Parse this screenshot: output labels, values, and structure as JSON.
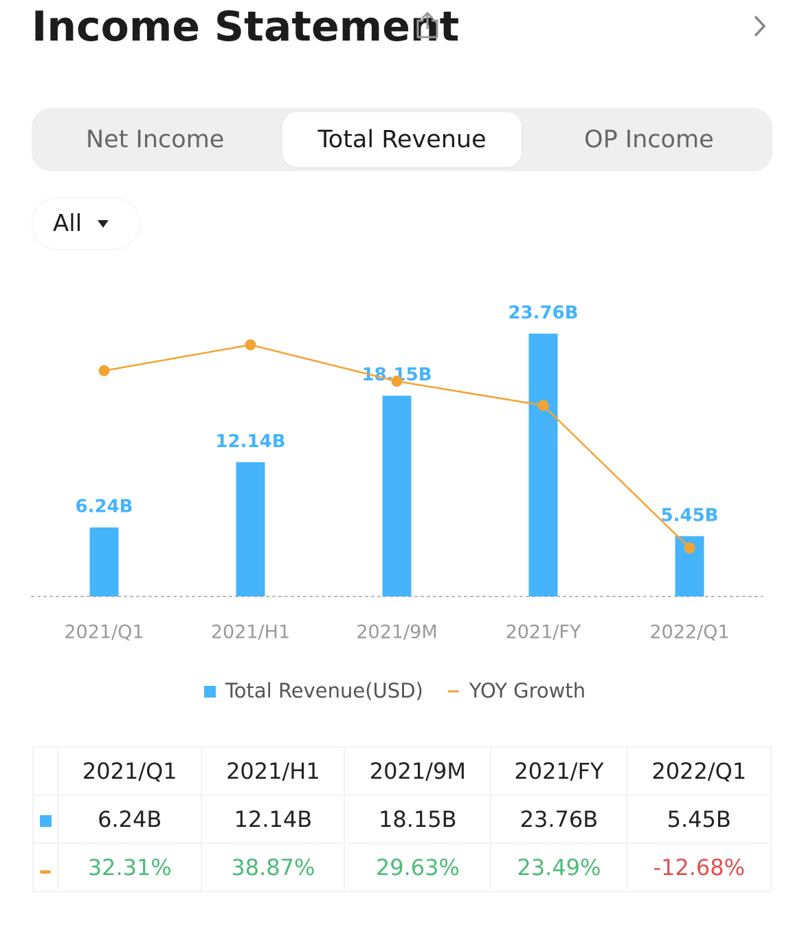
{
  "header": {
    "title": "Income Statement"
  },
  "tabs": {
    "items": [
      "Net Income",
      "Total Revenue",
      "OP Income"
    ],
    "active": 1
  },
  "filter": {
    "label": "All"
  },
  "chart_data": {
    "type": "bar",
    "categories": [
      "2021/Q1",
      "2021/H1",
      "2021/9M",
      "2021/FY",
      "2022/Q1"
    ],
    "ylim": [
      0,
      26
    ],
    "y2lim": [
      -25,
      48
    ],
    "series": [
      {
        "name": "Total Revenue(USD)",
        "type": "bar",
        "color": "#45b4fb",
        "values": [
          6.24,
          12.14,
          18.15,
          23.76,
          5.45
        ],
        "value_labels": [
          "6.24B",
          "12.14B",
          "18.15B",
          "23.76B",
          "5.45B"
        ]
      },
      {
        "name": "YOY Growth",
        "type": "line",
        "axis": "y2",
        "color": "#f3a333",
        "values": [
          32.31,
          38.87,
          29.63,
          23.49,
          -12.68
        ],
        "value_labels": [
          "32.31%",
          "38.87%",
          "29.63%",
          "23.49%",
          "-12.68%"
        ]
      }
    ]
  }
}
